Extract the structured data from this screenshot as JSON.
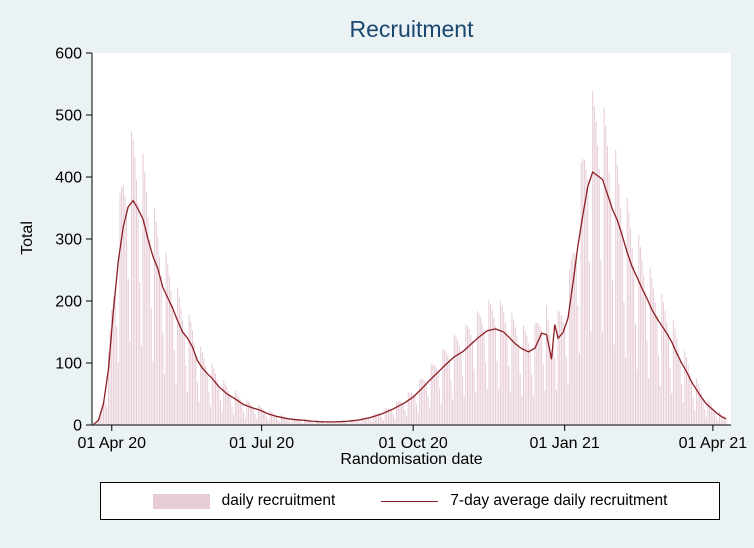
{
  "figure": {
    "background_color": "#eaf2f3",
    "plot_background": "#ffffff",
    "axis_color": "#000000",
    "title_color": "#1a476f"
  },
  "chart_data": {
    "type": "bar",
    "title": "Recruitment",
    "xlabel": "Randomisation date",
    "ylabel": "Total",
    "ylim": [
      0,
      600
    ],
    "y_ticks": [
      0,
      100,
      200,
      300,
      400,
      500,
      600
    ],
    "x_domain": [
      "2020-03-20",
      "2021-04-12"
    ],
    "x_ticks": [
      {
        "date": "2020-04-01",
        "label": "01 Apr 20"
      },
      {
        "date": "2020-07-01",
        "label": "01 Jul 20"
      },
      {
        "date": "2020-10-01",
        "label": "01 Oct 20"
      },
      {
        "date": "2021-01-01",
        "label": "01 Jan 21"
      },
      {
        "date": "2021-04-01",
        "label": "01 Apr 21"
      }
    ],
    "grid": false,
    "legend_position": "bottom",
    "legend": [
      {
        "label": "daily recruitment",
        "type": "bar",
        "color": "#e7ccd6"
      },
      {
        "label": "7-day average daily recruitment",
        "type": "line",
        "color": "#8b1e23"
      }
    ],
    "series": [
      {
        "name": "7-day average daily recruitment",
        "type": "line",
        "color": "#8b1e23",
        "dates": [
          "2020-03-21",
          "2020-03-24",
          "2020-03-27",
          "2020-03-30",
          "2020-04-02",
          "2020-04-05",
          "2020-04-08",
          "2020-04-11",
          "2020-04-14",
          "2020-04-17",
          "2020-04-20",
          "2020-04-23",
          "2020-04-26",
          "2020-04-29",
          "2020-05-02",
          "2020-05-05",
          "2020-05-08",
          "2020-05-11",
          "2020-05-14",
          "2020-05-17",
          "2020-05-20",
          "2020-05-23",
          "2020-05-26",
          "2020-05-29",
          "2020-06-01",
          "2020-06-05",
          "2020-06-10",
          "2020-06-15",
          "2020-06-20",
          "2020-06-25",
          "2020-06-30",
          "2020-07-05",
          "2020-07-10",
          "2020-07-15",
          "2020-07-20",
          "2020-07-25",
          "2020-08-01",
          "2020-08-08",
          "2020-08-15",
          "2020-08-22",
          "2020-08-29",
          "2020-09-05",
          "2020-09-12",
          "2020-09-19",
          "2020-09-26",
          "2020-10-01",
          "2020-10-06",
          "2020-10-11",
          "2020-10-16",
          "2020-10-21",
          "2020-10-26",
          "2020-10-31",
          "2020-11-05",
          "2020-11-10",
          "2020-11-15",
          "2020-11-20",
          "2020-11-25",
          "2020-11-28",
          "2020-12-02",
          "2020-12-06",
          "2020-12-10",
          "2020-12-14",
          "2020-12-18",
          "2020-12-21",
          "2020-12-24",
          "2020-12-26",
          "2020-12-28",
          "2020-12-31",
          "2021-01-03",
          "2021-01-06",
          "2021-01-09",
          "2021-01-12",
          "2021-01-15",
          "2021-01-18",
          "2021-01-21",
          "2021-01-24",
          "2021-01-27",
          "2021-01-30",
          "2021-02-02",
          "2021-02-05",
          "2021-02-08",
          "2021-02-11",
          "2021-02-14",
          "2021-02-17",
          "2021-02-20",
          "2021-02-23",
          "2021-02-26",
          "2021-03-01",
          "2021-03-04",
          "2021-03-07",
          "2021-03-10",
          "2021-03-13",
          "2021-03-16",
          "2021-03-19",
          "2021-03-22",
          "2021-03-25",
          "2021-03-28",
          "2021-03-31",
          "2021-04-03",
          "2021-04-06",
          "2021-04-09"
        ],
        "values": [
          1,
          8,
          35,
          90,
          185,
          265,
          320,
          352,
          362,
          348,
          332,
          300,
          272,
          252,
          222,
          205,
          188,
          168,
          150,
          140,
          126,
          104,
          92,
          83,
          75,
          62,
          50,
          42,
          33,
          28,
          24,
          18,
          14,
          11,
          9,
          8,
          6,
          5,
          5,
          6,
          8,
          12,
          18,
          26,
          36,
          45,
          58,
          72,
          85,
          98,
          110,
          118,
          130,
          142,
          152,
          155,
          150,
          142,
          131,
          123,
          118,
          124,
          148,
          146,
          106,
          162,
          140,
          149,
          172,
          228,
          288,
          338,
          384,
          408,
          402,
          396,
          372,
          348,
          330,
          305,
          278,
          255,
          238,
          220,
          204,
          186,
          172,
          160,
          148,
          134,
          116,
          100,
          86,
          70,
          57,
          45,
          34,
          27,
          20,
          14,
          10
        ]
      },
      {
        "name": "daily recruitment",
        "type": "bar",
        "color": "#e7ccd6",
        "start": "2020-03-23",
        "end": "2021-04-09",
        "derivation": "daily bars estimated as the 7-day average interpolated to each day multiplied by a day-of-week factor (weekday/weekend recruitment cycle visible in the chart)",
        "weekday_factors": {
          "sun": 0.38,
          "mon": 1.32,
          "tue": 1.27,
          "wed": 1.21,
          "thu": 1.12,
          "fri": 1.03,
          "sat": 0.67
        }
      }
    ]
  }
}
